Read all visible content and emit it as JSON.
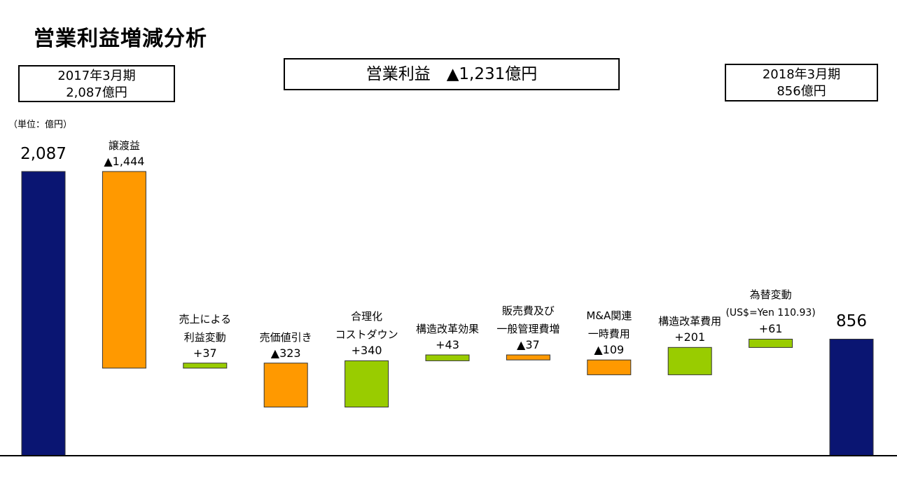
{
  "title": "営業利益増減分析",
  "box_start": {
    "line1": "2017年3月期",
    "line2": "2,087億円"
  },
  "box_center": {
    "text": "営業利益　▲1,231億円"
  },
  "box_end": {
    "line1": "2018年3月期",
    "line2": "856億円"
  },
  "unit_label": "（単位：億円）",
  "colors": {
    "total": "#0a1572",
    "decrease": "#ff9900",
    "increase": "#99cc00",
    "baseline": "#000000"
  },
  "chart_data": {
    "type": "waterfall",
    "title": "営業利益増減分析",
    "unit": "億円",
    "items": [
      {
        "label_lines": [],
        "value": 2087,
        "kind": "total",
        "display": "2,087"
      },
      {
        "label_lines": [
          "譲渡益"
        ],
        "value": -1444,
        "kind": "decrease",
        "display": "▲1,444"
      },
      {
        "label_lines": [
          "売上による",
          "利益変動"
        ],
        "value": 37,
        "kind": "increase",
        "display": "+37"
      },
      {
        "label_lines": [
          "売価値引き"
        ],
        "value": -323,
        "kind": "decrease",
        "display": "▲323"
      },
      {
        "label_lines": [
          "合理化",
          "コストダウン"
        ],
        "value": 340,
        "kind": "increase",
        "display": "+340"
      },
      {
        "label_lines": [
          "構造改革効果"
        ],
        "value": 43,
        "kind": "increase",
        "display": "+43"
      },
      {
        "label_lines": [
          "販売費及び",
          "一般管理費増"
        ],
        "value": -37,
        "kind": "decrease",
        "display": "▲37"
      },
      {
        "label_lines": [
          "M&A関連",
          "一時費用"
        ],
        "value": -109,
        "kind": "decrease",
        "display": "▲109"
      },
      {
        "label_lines": [
          "構造改革費用"
        ],
        "value": 201,
        "kind": "increase",
        "display": "+201"
      },
      {
        "label_lines": [
          "為替変動",
          "(US$=Yen 110.93)"
        ],
        "value": 61,
        "kind": "increase",
        "display": "+61"
      },
      {
        "label_lines": [],
        "value": 856,
        "kind": "total",
        "display": "856"
      }
    ]
  }
}
